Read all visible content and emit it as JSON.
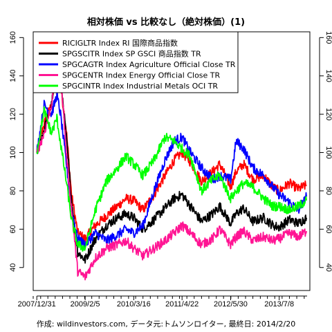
{
  "chart_data": {
    "type": "line",
    "title": "相対株価 vs 比較なし（絶対株価）(1)",
    "caption": "作成: wildinvestors.com, データ元:トムソンロイター, 最終日: 2014/2/20",
    "xlabel": "",
    "ylabel": "",
    "ylim": [
      28,
      163
    ],
    "y_ticks": [
      40,
      60,
      80,
      100,
      120,
      140,
      160
    ],
    "y_axes": [
      "left",
      "right"
    ],
    "x_ticks": [
      "2007/12/31",
      "2009/2/5",
      "2010/3/16",
      "2011/4/22",
      "2012/5/30",
      "2013/7/8"
    ],
    "x_tick_dates": [
      "2007-12-31",
      "2009-02-05",
      "2010-03-16",
      "2011-04-22",
      "2012-05-30",
      "2013-07-08"
    ],
    "x_range": [
      "2007-12-01",
      "2014-03-20"
    ],
    "legend_position": "top-left",
    "grid": false,
    "x": [
      "2007-12-31",
      "2008-03-01",
      "2008-05-01",
      "2008-06-15",
      "2008-07-15",
      "2008-09-01",
      "2008-10-15",
      "2008-12-05",
      "2009-02-05",
      "2009-05-01",
      "2009-08-01",
      "2009-11-01",
      "2010-01-10",
      "2010-03-16",
      "2010-06-01",
      "2010-09-01",
      "2010-12-01",
      "2011-02-15",
      "2011-04-22",
      "2011-07-01",
      "2011-10-01",
      "2012-01-01",
      "2012-03-01",
      "2012-05-30",
      "2012-07-15",
      "2012-09-15",
      "2012-12-01",
      "2013-03-01",
      "2013-05-15",
      "2013-07-08",
      "2013-10-01",
      "2013-12-15",
      "2014-02-20"
    ],
    "series": [
      {
        "name": "RICIGLTR Index RI 国際商品指数",
        "color": "#ff0000",
        "values": [
          100,
          115,
          125,
          142,
          135,
          112,
          78,
          58,
          55,
          62,
          67,
          72,
          76,
          75,
          70,
          78,
          88,
          96,
          100,
          95,
          85,
          90,
          94,
          82,
          90,
          94,
          86,
          88,
          82,
          80,
          84,
          81,
          83
        ]
      },
      {
        "name": "SPGSCITR Index SP GSCI 商品指数 TR",
        "color": "#000000",
        "values": [
          100,
          112,
          125,
          145,
          140,
          108,
          75,
          48,
          44,
          55,
          62,
          66,
          68,
          66,
          60,
          65,
          71,
          76,
          78,
          72,
          64,
          68,
          72,
          63,
          68,
          71,
          64,
          66,
          62,
          61,
          65,
          63,
          66
        ]
      },
      {
        "name": "SPGCAGTR Index Agriculture Official Close TR",
        "color": "#0000ff",
        "values": [
          100,
          125,
          120,
          130,
          120,
          95,
          70,
          55,
          52,
          58,
          54,
          57,
          60,
          58,
          62,
          80,
          96,
          106,
          108,
          100,
          92,
          86,
          88,
          86,
          106,
          102,
          92,
          88,
          82,
          78,
          74,
          70,
          77
        ]
      },
      {
        "name": "SPGCENTR Index Energy Official Close TR",
        "color": "#ff1493",
        "values": [
          100,
          110,
          125,
          150,
          145,
          100,
          70,
          38,
          35,
          45,
          50,
          52,
          54,
          50,
          46,
          50,
          54,
          58,
          62,
          58,
          52,
          55,
          60,
          52,
          56,
          59,
          54,
          56,
          54,
          55,
          58,
          56,
          59
        ]
      },
      {
        "name": "SPGCINTR Index Industrial Metals OCI TR",
        "color": "#00ff00",
        "values": [
          100,
          122,
          110,
          118,
          105,
          85,
          65,
          52,
          50,
          70,
          85,
          92,
          98,
          94,
          88,
          96,
          108,
          106,
          102,
          98,
          80,
          86,
          88,
          76,
          80,
          84,
          82,
          76,
          72,
          72,
          70,
          72,
          75
        ]
      }
    ]
  }
}
